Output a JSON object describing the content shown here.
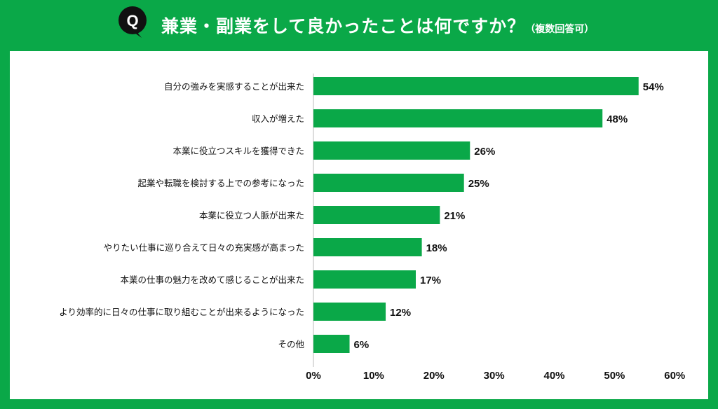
{
  "header": {
    "badge": "Q",
    "title": "兼業・副業をして良かったことは何ですか？",
    "subtitle": "（複数回答可）"
  },
  "colors": {
    "brand_green": "#0aa848",
    "bar": "#0aa848",
    "text": "#111111"
  },
  "chart_data": {
    "type": "bar",
    "orientation": "horizontal",
    "categories": [
      "自分の強みを実感することが出来た",
      "収入が増えた",
      "本業に役立つスキルを獲得できた",
      "起業や転職を検討する上での参考になった",
      "本業に役立つ人脈が出来た",
      "やりたい仕事に巡り合えて日々の充実感が高まった",
      "本業の仕事の魅力を改めて感じることが出来た",
      "より効率的に日々の仕事に取り組むことが出来るようになった",
      "その他"
    ],
    "values": [
      54,
      48,
      26,
      25,
      21,
      18,
      17,
      12,
      6
    ],
    "value_labels": [
      "54%",
      "48%",
      "26%",
      "25%",
      "21%",
      "18%",
      "17%",
      "12%",
      "6%"
    ],
    "xlim": [
      0,
      60
    ],
    "xticks": [
      "0%",
      "10%",
      "20%",
      "30%",
      "40%",
      "50%",
      "60%"
    ],
    "grid": false
  }
}
